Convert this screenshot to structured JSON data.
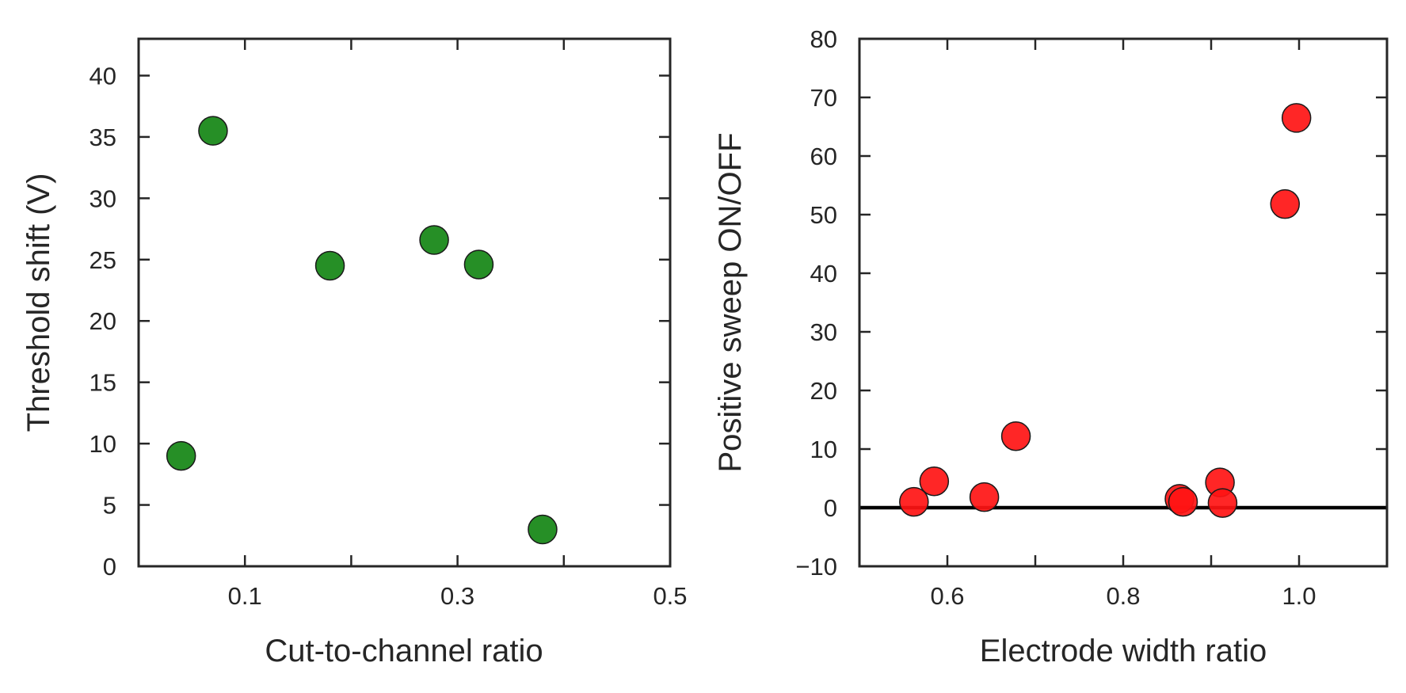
{
  "chart_data": [
    {
      "type": "scatter",
      "xlabel": "Cut-to-channel ratio",
      "ylabel": "Threshold shift (V)",
      "xlim": [
        0.0,
        0.5
      ],
      "ylim": [
        0,
        43
      ],
      "xticks": [
        0.1,
        0.3,
        0.5
      ],
      "xtick_labels": [
        "0.1",
        "0.3",
        "0.5"
      ],
      "xticks_unlabeled": [
        0.2,
        0.4
      ],
      "yticks": [
        0,
        5,
        10,
        15,
        20,
        25,
        30,
        35,
        40
      ],
      "ytick_labels": [
        "0",
        "5",
        "10",
        "15",
        "20",
        "25",
        "30",
        "35",
        "40"
      ],
      "grid": false,
      "marker_color": "#138613",
      "points": [
        {
          "x": 0.04,
          "y": 9.0
        },
        {
          "x": 0.07,
          "y": 35.5
        },
        {
          "x": 0.18,
          "y": 24.5
        },
        {
          "x": 0.278,
          "y": 26.6
        },
        {
          "x": 0.32,
          "y": 24.6
        },
        {
          "x": 0.38,
          "y": 3.0
        }
      ]
    },
    {
      "type": "scatter",
      "xlabel": "Electrode width ratio",
      "ylabel": "Positive sweep ON/OFF",
      "xlim": [
        0.5,
        1.1
      ],
      "ylim": [
        -10,
        80
      ],
      "xticks": [
        0.6,
        0.8,
        1.0
      ],
      "xtick_labels": [
        "0.6",
        "0.8",
        "1.0"
      ],
      "xticks_unlabeled": [
        0.7,
        0.9
      ],
      "yticks": [
        -10,
        0,
        10,
        20,
        30,
        40,
        50,
        60,
        70,
        80
      ],
      "ytick_labels": [
        "−10",
        "0",
        "10",
        "20",
        "30",
        "40",
        "50",
        "60",
        "70",
        "80"
      ],
      "grid": false,
      "marker_color": "#ff1414",
      "reference_line_y": 0,
      "reference_line_color": "#000000",
      "points": [
        {
          "x": 0.562,
          "y": 1.0
        },
        {
          "x": 0.585,
          "y": 4.5
        },
        {
          "x": 0.642,
          "y": 1.8
        },
        {
          "x": 0.678,
          "y": 12.2
        },
        {
          "x": 0.864,
          "y": 1.5
        },
        {
          "x": 0.868,
          "y": 1.0
        },
        {
          "x": 0.91,
          "y": 4.3
        },
        {
          "x": 0.913,
          "y": 0.8
        },
        {
          "x": 0.984,
          "y": 51.8
        },
        {
          "x": 0.997,
          "y": 66.5
        }
      ]
    }
  ]
}
